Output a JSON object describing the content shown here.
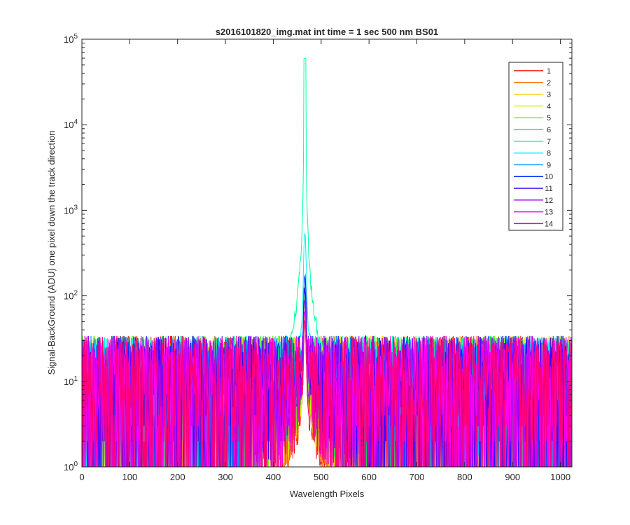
{
  "chart_data": {
    "type": "line",
    "title": "s2016101820_img.mat int time = 1 sec  500 nm BS01",
    "xlabel": "Wavelength Pixels",
    "ylabel": "Signal-BackGround (ADU) one pixel down the track direction",
    "xlim": [
      0,
      1024
    ],
    "ylim": [
      1,
      100000
    ],
    "yscale": "log",
    "grid": false,
    "legend_position": "top-right",
    "x_ticks": [
      "0",
      "100",
      "200",
      "300",
      "400",
      "500",
      "600",
      "700",
      "800",
      "900",
      "1000"
    ],
    "x_tick_values": [
      0,
      100,
      200,
      300,
      400,
      500,
      600,
      700,
      800,
      900,
      1000
    ],
    "y_tick_values": [
      1,
      10,
      100,
      1000,
      10000,
      100000
    ],
    "y_tick_base": "10",
    "y_tick_exponents": [
      "0",
      "1",
      "2",
      "3",
      "4",
      "5"
    ],
    "peak_center": 466,
    "series": [
      {
        "name": "1",
        "color": "#ff0000",
        "peak": 40
      },
      {
        "name": "2",
        "color": "#ff6e00",
        "peak": 45
      },
      {
        "name": "3",
        "color": "#ffd200",
        "peak": 50
      },
      {
        "name": "4",
        "color": "#c8ff00",
        "peak": 55
      },
      {
        "name": "5",
        "color": "#64ff00",
        "peak": 70
      },
      {
        "name": "6",
        "color": "#00ff3c",
        "peak": 95
      },
      {
        "name": "7",
        "color": "#00ffa0",
        "peak": 60000
      },
      {
        "name": "8",
        "color": "#00f0ff",
        "peak": 480
      },
      {
        "name": "9",
        "color": "#0096ff",
        "peak": 160
      },
      {
        "name": "10",
        "color": "#0028ff",
        "peak": 150
      },
      {
        "name": "11",
        "color": "#3c00ff",
        "peak": 110
      },
      {
        "name": "12",
        "color": "#a000ff",
        "peak": 80
      },
      {
        "name": "13",
        "color": "#ff00f0",
        "peak": 60
      },
      {
        "name": "14",
        "color": "#ff0078",
        "peak": 50
      }
    ]
  }
}
